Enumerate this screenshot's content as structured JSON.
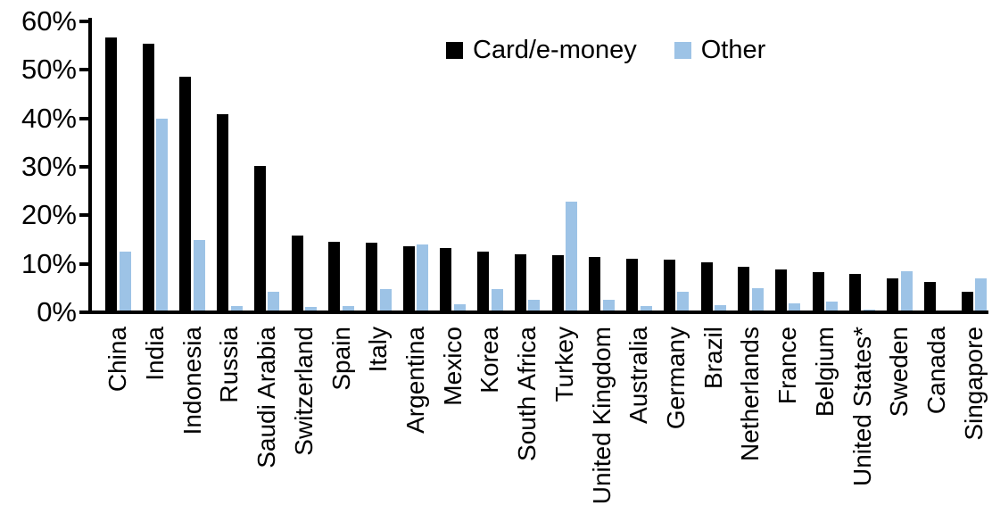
{
  "colors": {
    "card": "#000000",
    "other": "#9DC3E6",
    "axis": "#000000",
    "background": "#FFFFFF",
    "text": "#000000"
  },
  "legend": {
    "items": [
      {
        "label": "Card/e-money",
        "color_key": "card"
      },
      {
        "label": "Other",
        "color_key": "other"
      }
    ]
  },
  "chart_data": {
    "type": "bar",
    "title": "",
    "categories": [
      "China",
      "India",
      "Indonesia",
      "Russia",
      "Saudi Arabia",
      "Switzerland",
      "Spain",
      "Italy",
      "Argentina",
      "Mexico",
      "Korea",
      "South Africa",
      "Turkey",
      "United Kingdom",
      "Australia",
      "Germany",
      "Brazil",
      "Netherlands",
      "France",
      "Belgium",
      "United States*",
      "Sweden",
      "Canada",
      "Singapore"
    ],
    "series": [
      {
        "name": "Card/e-money",
        "color_key": "card",
        "values": [
          56.3,
          55.0,
          48.2,
          40.5,
          29.9,
          15.5,
          14.1,
          13.9,
          13.3,
          12.8,
          12.1,
          11.6,
          11.5,
          11.0,
          10.7,
          10.5,
          9.9,
          9.1,
          8.4,
          8.0,
          7.6,
          6.6,
          5.9,
          3.9
        ]
      },
      {
        "name": "Other",
        "color_key": "other",
        "values": [
          12.2,
          39.6,
          14.5,
          1.0,
          3.8,
          0.7,
          1.0,
          4.4,
          13.7,
          1.2,
          4.4,
          2.2,
          22.5,
          2.2,
          0.9,
          3.8,
          1.1,
          4.6,
          1.5,
          1.9,
          0.2,
          8.1,
          0.0,
          6.6
        ]
      }
    ],
    "xlabel": "",
    "ylabel": "",
    "ylim": [
      0,
      60
    ],
    "ytick_step": 10,
    "ytick_labels": [
      "0%",
      "10%",
      "20%",
      "30%",
      "40%",
      "50%",
      "60%"
    ],
    "yaxis_format": "percent",
    "grid": false,
    "legend_position": "top-center"
  }
}
